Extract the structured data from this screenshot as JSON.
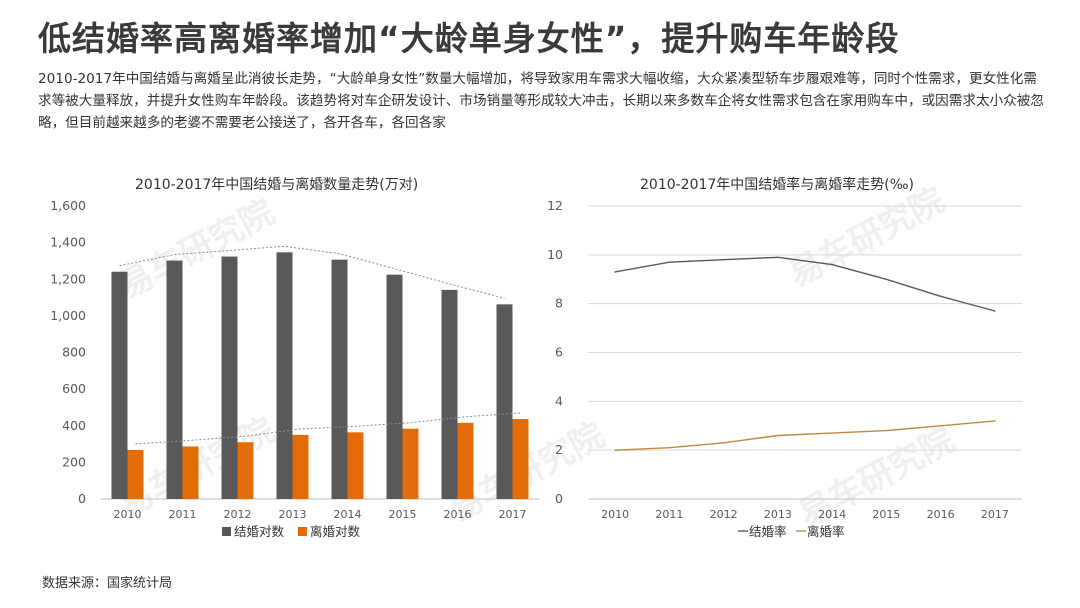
{
  "header": {
    "title": "低结婚率高离婚率增加“大龄单身女性”，提升购车年龄段",
    "description": "2010-2017年中国结婚与离婚呈此消彼长走势，“大龄单身女性”数量大幅增加，将导致家用车需求大幅收缩，大众紧凑型轿车步履艰难等，同时个性需求，更女性化需求等被大量释放，并提升女性购车年龄段。该趋势将对车企研发设计、市场销量等形成较大冲击，长期以来多数车企将女性需求包含在家用购车中，或因需求太小众被忽略，但目前越来越多的老婆不需要老公接送了，各开各车，各回各家"
  },
  "watermark": "易车研究院",
  "colors": {
    "marriage": "#595959",
    "divorce": "#e36c09",
    "grid": "#d9d9d9",
    "axis_text": "#595959"
  },
  "source": "数据来源：国家统计局",
  "chart_data": [
    {
      "type": "bar",
      "title": "2010-2017年中国结婚与离婚数量走势(万对)",
      "categories": [
        "2010",
        "2011",
        "2012",
        "2013",
        "2014",
        "2015",
        "2016",
        "2017"
      ],
      "series": [
        {
          "name": "结婚对数",
          "values": [
            1241,
            1302,
            1324,
            1347,
            1307,
            1225,
            1142,
            1063
          ]
        },
        {
          "name": "离婚对数",
          "values": [
            268,
            287,
            310,
            350,
            364,
            384,
            416,
            437
          ]
        }
      ],
      "ylim": [
        0,
        1600
      ],
      "yticks": [
        "0",
        "200",
        "400",
        "600",
        "800",
        "1,000",
        "1,200",
        "1,400",
        "1,600"
      ],
      "trendlines": "dotted",
      "legend": "bottom"
    },
    {
      "type": "line",
      "title": "2010-2017年中国结婚率与离婚率走势(‰)",
      "categories": [
        "2010",
        "2011",
        "2012",
        "2013",
        "2014",
        "2015",
        "2016",
        "2017"
      ],
      "series": [
        {
          "name": "结婚率",
          "values": [
            9.3,
            9.7,
            9.8,
            9.9,
            9.6,
            9.0,
            8.3,
            7.7
          ]
        },
        {
          "name": "离婚率",
          "values": [
            2.0,
            2.1,
            2.3,
            2.6,
            2.7,
            2.8,
            3.0,
            3.2
          ]
        }
      ],
      "ylim": [
        0,
        12
      ],
      "yticks": [
        "0",
        "2",
        "4",
        "6",
        "8",
        "10",
        "12"
      ],
      "legend": "bottom"
    }
  ]
}
